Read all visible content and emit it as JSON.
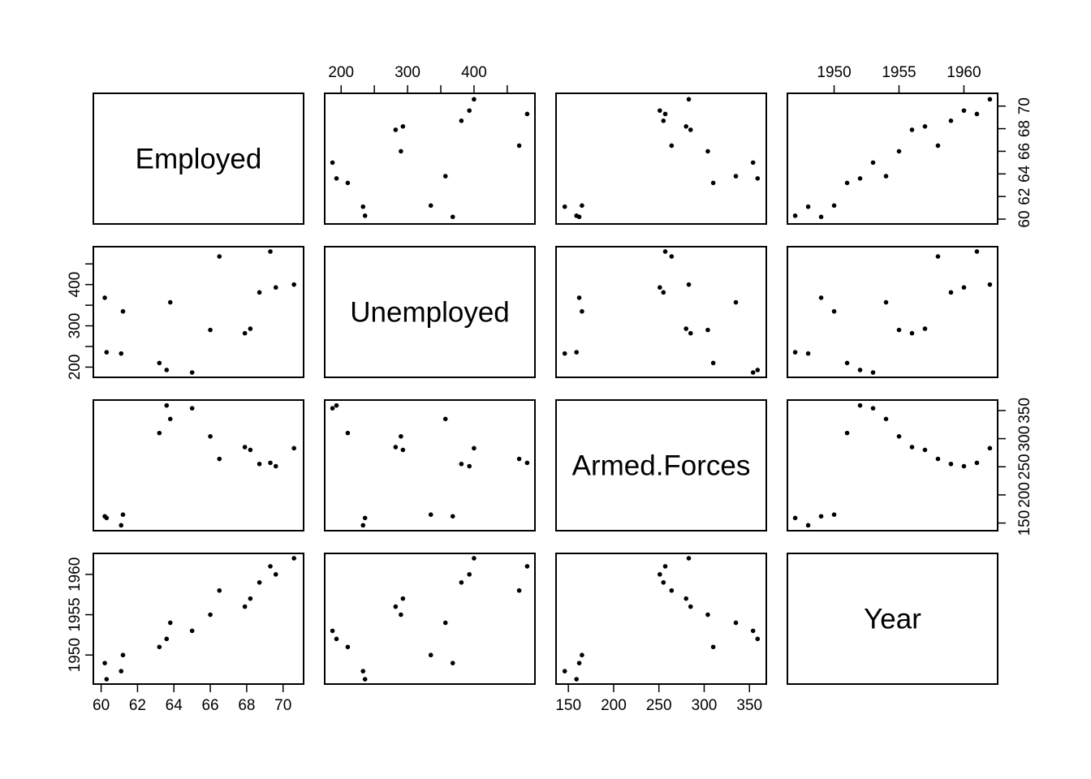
{
  "chart_data": {
    "type": "scatter",
    "variables": [
      "Employed",
      "Unemployed",
      "Armed.Forces",
      "Year"
    ],
    "axes": {
      "Employed": {
        "ticks": [
          60,
          62,
          64,
          66,
          68,
          70
        ],
        "range": [
          60.0,
          70.7
        ]
      },
      "Unemployed": {
        "ticks": [
          200,
          250,
          300,
          350,
          400,
          450
        ],
        "tick_labels": [
          "200",
          "",
          "300",
          "",
          "400",
          ""
        ],
        "range": [
          187,
          480
        ]
      },
      "Armed.Forces": {
        "ticks": [
          150,
          200,
          250,
          300,
          350
        ],
        "range": [
          145,
          360
        ]
      },
      "Year": {
        "ticks": [
          1950,
          1955,
          1960
        ],
        "range": [
          1947,
          1962
        ]
      }
    },
    "observations": [
      {
        "Employed": 60.3,
        "Unemployed": 236,
        "Armed.Forces": 159,
        "Year": 1947
      },
      {
        "Employed": 61.1,
        "Unemployed": 233,
        "Armed.Forces": 146,
        "Year": 1948
      },
      {
        "Employed": 60.2,
        "Unemployed": 368,
        "Armed.Forces": 162,
        "Year": 1949
      },
      {
        "Employed": 61.2,
        "Unemployed": 335,
        "Armed.Forces": 165,
        "Year": 1950
      },
      {
        "Employed": 63.2,
        "Unemployed": 210,
        "Armed.Forces": 310,
        "Year": 1951
      },
      {
        "Employed": 63.6,
        "Unemployed": 193,
        "Armed.Forces": 359,
        "Year": 1952
      },
      {
        "Employed": 65.0,
        "Unemployed": 187,
        "Armed.Forces": 354,
        "Year": 1953
      },
      {
        "Employed": 63.8,
        "Unemployed": 357,
        "Armed.Forces": 335,
        "Year": 1954
      },
      {
        "Employed": 66.0,
        "Unemployed": 290,
        "Armed.Forces": 304,
        "Year": 1955
      },
      {
        "Employed": 67.9,
        "Unemployed": 282,
        "Armed.Forces": 285,
        "Year": 1956
      },
      {
        "Employed": 68.2,
        "Unemployed": 293,
        "Armed.Forces": 280,
        "Year": 1957
      },
      {
        "Employed": 66.5,
        "Unemployed": 468,
        "Armed.Forces": 264,
        "Year": 1958
      },
      {
        "Employed": 68.7,
        "Unemployed": 381,
        "Armed.Forces": 255,
        "Year": 1959
      },
      {
        "Employed": 69.6,
        "Unemployed": 393,
        "Armed.Forces": 251,
        "Year": 1960
      },
      {
        "Employed": 69.3,
        "Unemployed": 480,
        "Armed.Forces": 257,
        "Year": 1961
      },
      {
        "Employed": 70.6,
        "Unemployed": 400,
        "Armed.Forces": 283,
        "Year": 1962
      }
    ]
  }
}
